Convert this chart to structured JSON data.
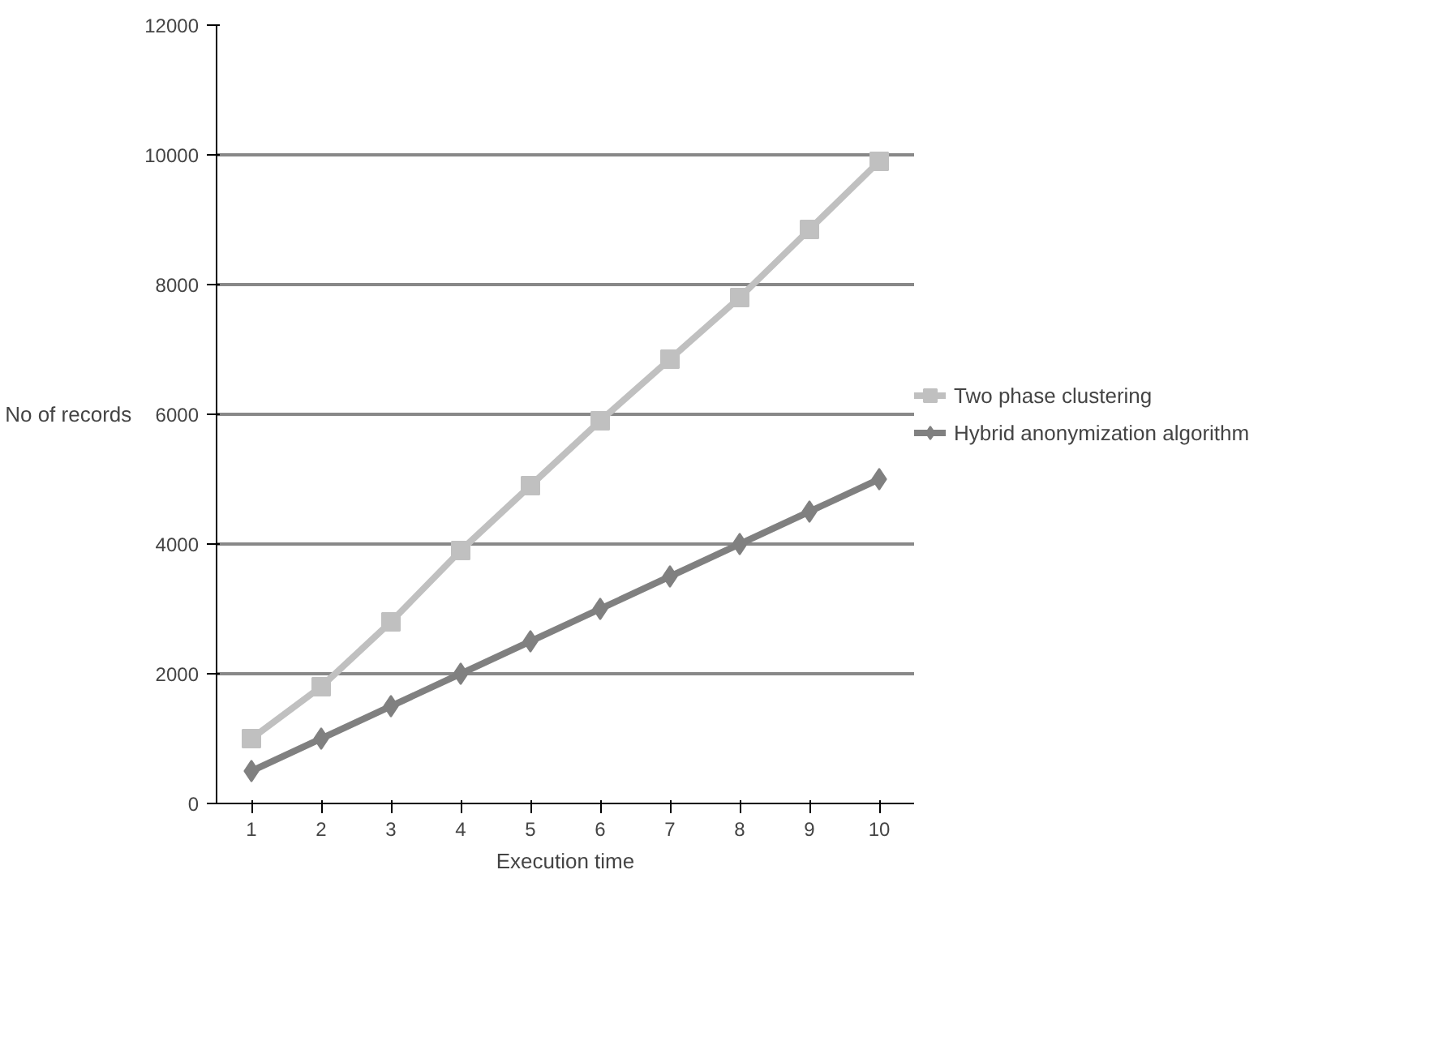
{
  "chart_data": {
    "type": "line",
    "xlabel": "Execution time",
    "ylabel": "No of records",
    "categories": [
      "1",
      "2",
      "3",
      "4",
      "5",
      "6",
      "7",
      "8",
      "9",
      "10"
    ],
    "series": [
      {
        "name": "Two phase clustering",
        "color": "#c0c0c0",
        "marker": "square",
        "values": [
          1000,
          1800,
          2800,
          3900,
          4900,
          5900,
          6850,
          7800,
          8850,
          9900
        ]
      },
      {
        "name": "Hybrid anonymization algorithm",
        "color": "#808080",
        "marker": "diamond",
        "values": [
          500,
          1000,
          1500,
          2000,
          2500,
          3000,
          3500,
          4000,
          4500,
          5000
        ]
      }
    ],
    "ylim": [
      0,
      12000
    ],
    "yticks": [
      0,
      2000,
      4000,
      6000,
      8000,
      10000,
      12000
    ],
    "grid": "y",
    "legend": "right",
    "line_style": "solid"
  }
}
